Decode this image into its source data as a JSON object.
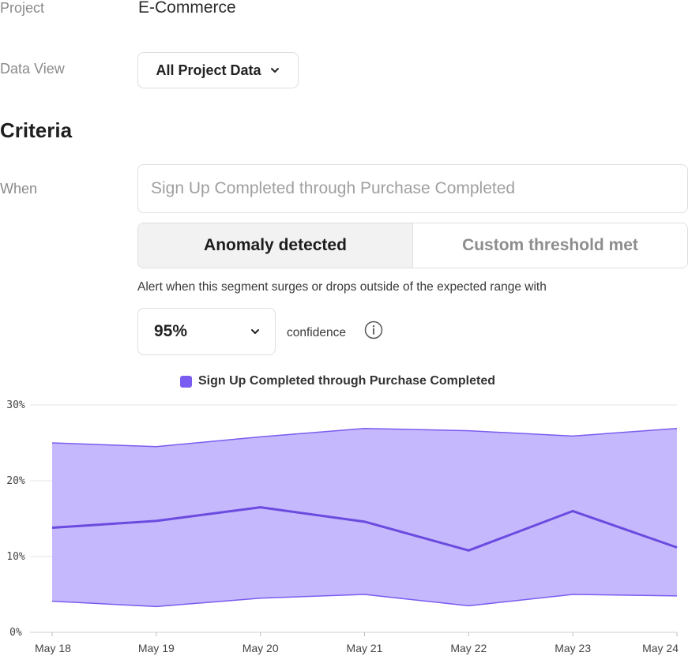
{
  "form": {
    "project_label": "Project",
    "project_value": "E-Commerce",
    "data_view_label": "Data View",
    "data_view_value": "All Project Data",
    "criteria_title": "Criteria",
    "when_label": "When",
    "when_value": "Sign Up Completed through Purchase Completed",
    "segments": [
      "Anomaly detected",
      "Custom threshold met"
    ],
    "active_segment": "Anomaly detected",
    "alert_description": "Alert when this segment surges or drops outside of the expected range with",
    "confidence_value": "95%",
    "confidence_label": "confidence"
  },
  "icons": {
    "data_view_chevron": "chevron-down-icon",
    "confidence_chevron": "chevron-down-icon",
    "info": "info-icon"
  },
  "colors": {
    "band_fill": "#c6b8fc",
    "band_stroke": "#7b5cf0",
    "line": "#6a4be0",
    "legend_swatch": "#7b5cf0"
  },
  "chart_data": {
    "type": "area",
    "title": "",
    "legend": [
      "Sign Up Completed through Purchase Completed"
    ],
    "x": [
      "May 18",
      "May 19",
      "May 20",
      "May 21",
      "May 22",
      "May 23",
      "May 24"
    ],
    "series": [
      {
        "name": "Sign Up Completed through Purchase Completed",
        "values": [
          13.8,
          14.7,
          16.5,
          14.6,
          10.8,
          16.0,
          11.2
        ]
      }
    ],
    "expected_range": {
      "upper": [
        25.0,
        24.5,
        25.8,
        26.9,
        26.6,
        25.9,
        26.9
      ],
      "lower": [
        4.1,
        3.4,
        4.5,
        5.0,
        3.5,
        5.0,
        4.8
      ]
    },
    "y_ticks": [
      "30%",
      "20%",
      "10%",
      "0%"
    ],
    "ylim": [
      0,
      30
    ],
    "grid": true
  }
}
